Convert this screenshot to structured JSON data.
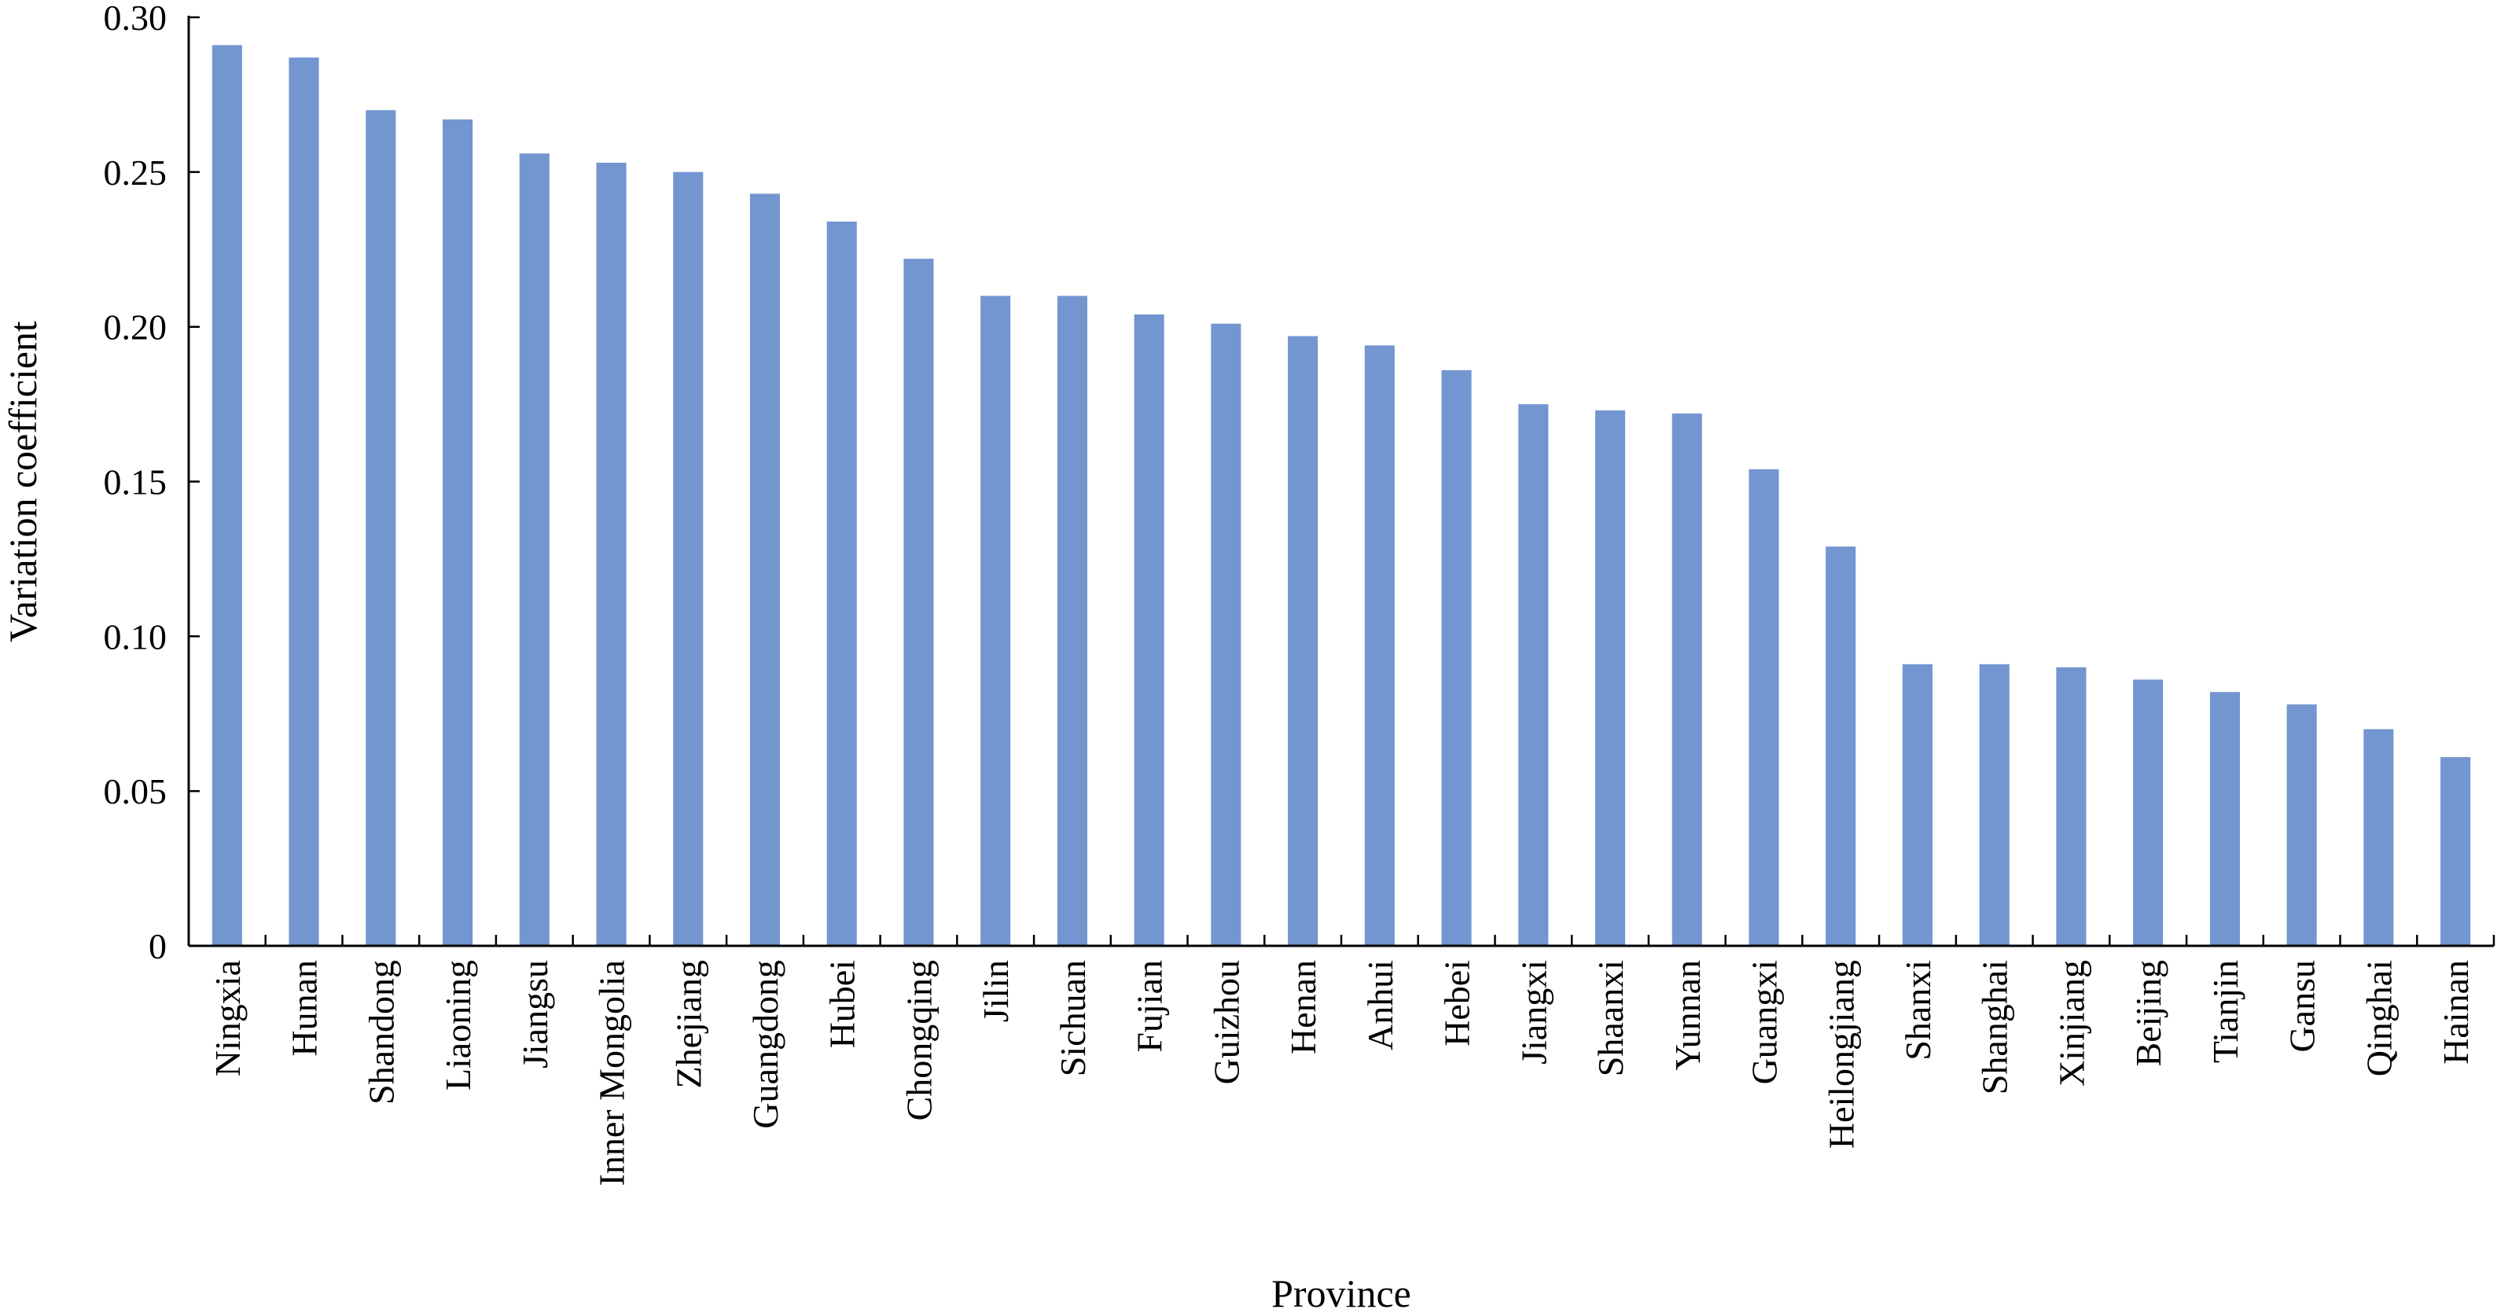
{
  "chart_data": {
    "type": "bar",
    "title": "",
    "xlabel": "Province",
    "ylabel": "Variation coefficient",
    "ylim": [
      0,
      0.3
    ],
    "yticks": [
      {
        "value": 0,
        "label": "0"
      },
      {
        "value": 0.05,
        "label": "0.05"
      },
      {
        "value": 0.1,
        "label": "0.10"
      },
      {
        "value": 0.15,
        "label": "0.15"
      },
      {
        "value": 0.2,
        "label": "0.20"
      },
      {
        "value": 0.25,
        "label": "0.25"
      },
      {
        "value": 0.3,
        "label": "0.30"
      }
    ],
    "bar_color": "#7396d0",
    "grid": false,
    "legend": "none",
    "categories": [
      "Ningxia",
      "Hunan",
      "Shandong",
      "Liaoning",
      "Jiangsu",
      "Inner Mongolia",
      "Zhejiang",
      "Guangdong",
      "Hubei",
      "Chongqing",
      "Jilin",
      "Sichuan",
      "Fujian",
      "Guizhou",
      "Henan",
      "Anhui",
      "Hebei",
      "Jiangxi",
      "Shaanxi",
      "Yunnan",
      "Guangxi",
      "Heilongjiang",
      "Shanxi",
      "Shanghai",
      "Xinjiang",
      "Beijing",
      "Tianjin",
      "Gansu",
      "Qinghai",
      "Hainan"
    ],
    "values": [
      0.291,
      0.287,
      0.27,
      0.267,
      0.256,
      0.253,
      0.25,
      0.243,
      0.234,
      0.222,
      0.21,
      0.21,
      0.204,
      0.201,
      0.197,
      0.194,
      0.186,
      0.175,
      0.173,
      0.172,
      0.154,
      0.129,
      0.091,
      0.091,
      0.09,
      0.086,
      0.082,
      0.078,
      0.07,
      0.061
    ]
  }
}
